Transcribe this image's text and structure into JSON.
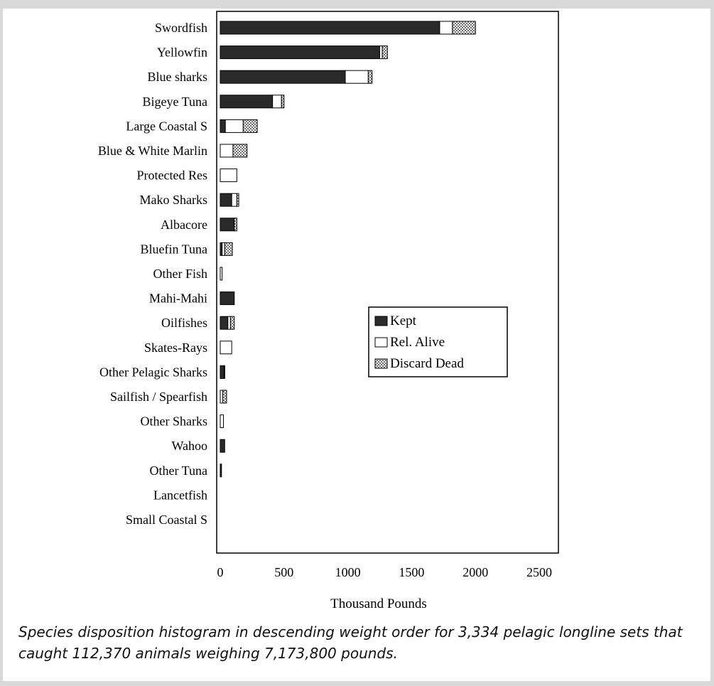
{
  "chart_data": {
    "type": "bar",
    "orientation": "horizontal",
    "stacked": true,
    "categories": [
      "Swordfish",
      "Yellowfin",
      "Blue sharks",
      "Bigeye Tuna",
      "Large Coastal S",
      "Blue & White Marlin",
      "Protected Res",
      "Mako Sharks",
      "Albacore",
      "Bluefin Tuna",
      "Other Fish",
      "Mahi-Mahi",
      "Oilfishes",
      "Skates-Rays",
      "Other Pelagic Sharks",
      "Sailfish / Spearfish",
      "Other Sharks",
      "Wahoo",
      "Other Tuna",
      "Lancetfish",
      "Small Coastal S"
    ],
    "series": [
      {
        "name": "Kept",
        "color": "#2a2a2a",
        "pattern": "solid",
        "values": [
          1720,
          1250,
          980,
          410,
          40,
          0,
          0,
          90,
          110,
          15,
          0,
          110,
          60,
          0,
          30,
          0,
          0,
          35,
          10,
          0,
          0
        ]
      },
      {
        "name": "Rel. Alive",
        "color": "#ffffff",
        "pattern": "open",
        "values": [
          100,
          20,
          180,
          70,
          140,
          100,
          130,
          40,
          0,
          20,
          15,
          0,
          20,
          90,
          5,
          20,
          25,
          0,
          0,
          0,
          0
        ]
      },
      {
        "name": "Discard Dead",
        "color": "#9a9a9a",
        "pattern": "checker",
        "values": [
          180,
          40,
          30,
          20,
          110,
          110,
          0,
          15,
          20,
          60,
          0,
          0,
          30,
          0,
          0,
          30,
          0,
          0,
          0,
          0,
          0
        ]
      }
    ],
    "xlabel": "Thousand Pounds",
    "ylabel": "",
    "xlim": [
      0,
      2500
    ],
    "xticks": [
      0,
      500,
      1000,
      1500,
      2000,
      2500
    ],
    "legend": "right-middle",
    "grid": false
  },
  "caption": "Species disposition histogram in descending weight order for 3,334 pelagic longline sets that caught 112,370 animals weighing 7,173,800 pounds."
}
